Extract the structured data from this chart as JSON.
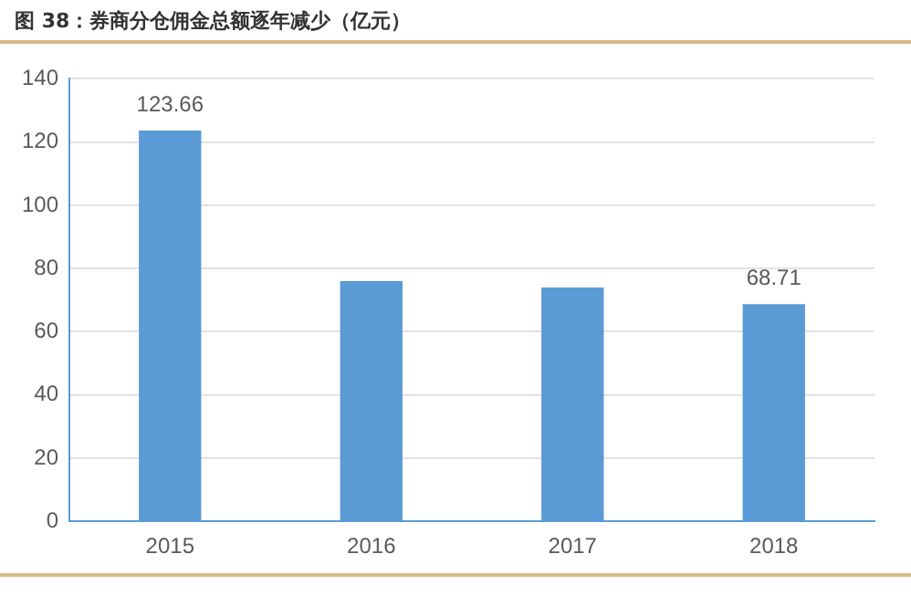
{
  "chart_data": {
    "type": "bar",
    "title": "图 38：券商分仓佣金总额逐年减少（亿元）",
    "categories": [
      "2015",
      "2016",
      "2017",
      "2018"
    ],
    "values": [
      123.66,
      76,
      74,
      68.71
    ],
    "value_labels": [
      "123.66",
      null,
      null,
      "68.71"
    ],
    "color": "#5b9bd5",
    "ylim": [
      0,
      140
    ],
    "yticks": [
      0,
      20,
      40,
      60,
      80,
      100,
      120,
      140
    ],
    "grid": "y",
    "legend": false
  }
}
